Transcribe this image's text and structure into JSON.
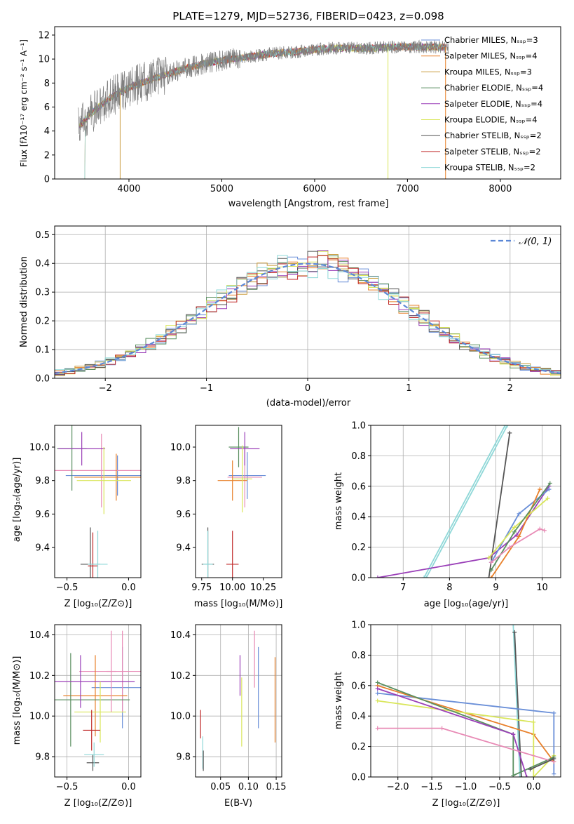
{
  "colors": [
    "#6a8fd8",
    "#e8802a",
    "#c89a3a",
    "#5a8f60",
    "#9a3fb8",
    "#d9e65a",
    "#555555",
    "#c02a2a",
    "#8fd8d8",
    "#e88ab5"
  ],
  "chart_data": [
    {
      "id": "spectrum",
      "type": "line",
      "title": "PLATE=1279, MJD=52736, FIBERID=0423, z=0.098",
      "xlabel": "wavelength [Angstrom, rest frame]",
      "ylabel": "Flux [fλ10⁻¹⁷ erg cm⁻² s⁻¹ A⁻¹]",
      "xlim": [
        3200,
        8650
      ],
      "ylim": [
        0,
        12.7
      ],
      "xticks": [
        "4000",
        "5000",
        "6000",
        "7000",
        "8000"
      ],
      "yticks": [
        "0",
        "2",
        "4",
        "6",
        "8",
        "10",
        "12"
      ],
      "legend_position": "right",
      "legend": [
        "Chabrier MILES, Nₛₛₚ=3",
        "Salpeter MILES, Nₛₛₚ=4",
        "Kroupa MILES, Nₛₛₚ=3",
        "Chabrier ELODIE, Nₛₛₚ=4",
        "Salpeter ELODIE, Nₛₛₚ=4",
        "Kroupa ELODIE, Nₛₛₚ=4",
        "Chabrier STELIB, Nₛₛₚ=2",
        "Salpeter STELIB, Nₛₛₚ=2",
        "Kroupa STELIB, Nₛₛₚ=2"
      ],
      "data_curve": {
        "x": [
          3450,
          3600,
          3800,
          4000,
          4200,
          4400,
          4600,
          4800,
          5000,
          5200,
          5400,
          5600,
          5800,
          6000,
          6200,
          6400,
          6600,
          6800,
          7000,
          7200,
          7400
        ],
        "y": [
          4.3,
          5.5,
          6.8,
          7.6,
          8.2,
          8.7,
          9.2,
          9.6,
          9.9,
          10.1,
          10.3,
          10.5,
          10.6,
          10.8,
          10.9,
          10.9,
          10.9,
          11.0,
          11.0,
          11.0,
          11.0
        ]
      }
    },
    {
      "id": "residuals",
      "type": "histogram",
      "xlabel": "(data-model)/error",
      "ylabel": "Normed distribution",
      "xlim": [
        -2.5,
        2.5
      ],
      "ylim": [
        0,
        0.53
      ],
      "xticks": [
        "−2",
        "−1",
        "0",
        "1",
        "2"
      ],
      "yticks": [
        "0.0",
        "0.1",
        "0.2",
        "0.3",
        "0.4",
        "0.5"
      ],
      "legend": [
        "𝒩(0, 1)"
      ],
      "legend_position": "top-right",
      "grid": true
    },
    {
      "id": "age-vs-Z",
      "type": "errorbar",
      "xlabel": "Z [log₁₀(Z/Z⊙)]",
      "ylabel": "age  [log₁₀(age/yr)]",
      "xlim": [
        -0.6,
        0.1
      ],
      "ylim": [
        9.22,
        10.13
      ],
      "xticks": [
        "−0.5",
        "0.0"
      ],
      "yticks": [
        "9.4",
        "9.6",
        "9.8",
        "10.0"
      ],
      "points": [
        {
          "x": -0.09,
          "y": 9.83,
          "xerr": 0.42,
          "yerr": 0.12
        },
        {
          "x": -0.22,
          "y": 9.86,
          "xerr": 0.42,
          "yerr": 0.22
        },
        {
          "x": -0.1,
          "y": 9.82,
          "xerr": 0.34,
          "yerr": 0.14
        },
        {
          "x": -0.46,
          "y": 9.99,
          "xerr": 0.12,
          "yerr": 0.25
        },
        {
          "x": -0.38,
          "y": 9.99,
          "xerr": 0.19,
          "yerr": 0.1
        },
        {
          "x": -0.2,
          "y": 9.8,
          "xerr": 0.22,
          "yerr": 0.2
        },
        {
          "x": -0.31,
          "y": 9.3,
          "xerr": 0.08,
          "yerr": 0.22
        },
        {
          "x": -0.29,
          "y": 9.29,
          "xerr": 0.04,
          "yerr": 0.2
        },
        {
          "x": -0.25,
          "y": 9.3,
          "xerr": 0.08,
          "yerr": 0.2
        }
      ]
    },
    {
      "id": "age-vs-mass",
      "type": "errorbar",
      "xlabel": "mass [log₁₀(M/M⊙)]",
      "xlim": [
        9.7,
        10.4
      ],
      "ylim": [
        9.22,
        10.13
      ],
      "xticks": [
        "9.75",
        "10.00",
        "10.25"
      ],
      "yticks": [
        "9.4",
        "9.6",
        "9.8",
        "10.0"
      ],
      "points": [
        {
          "x": 10.12,
          "y": 9.83,
          "xerr": 0.15,
          "yerr": 0.14
        },
        {
          "x": 10.1,
          "y": 9.82,
          "xerr": 0.14,
          "yerr": 0.18
        },
        {
          "x": 10.0,
          "y": 9.8,
          "xerr": 0.12,
          "yerr": 0.12
        },
        {
          "x": 10.05,
          "y": 10.0,
          "xerr": 0.08,
          "yerr": 0.12
        },
        {
          "x": 10.1,
          "y": 9.99,
          "xerr": 0.12,
          "yerr": 0.1
        },
        {
          "x": 10.08,
          "y": 9.81,
          "xerr": 0.08,
          "yerr": 0.2
        },
        {
          "x": 9.8,
          "y": 9.3,
          "xerr": 0.05,
          "yerr": 0.22
        },
        {
          "x": 10.0,
          "y": 9.3,
          "xerr": 0.05,
          "yerr": 0.2
        },
        {
          "x": 9.8,
          "y": 9.3,
          "xerr": 0.04,
          "yerr": 0.2
        }
      ]
    },
    {
      "id": "weight-vs-age",
      "type": "line",
      "xlabel": "age  [log₁₀(age/yr)]",
      "ylabel": "mass weight",
      "xlim": [
        6.3,
        10.4
      ],
      "ylim": [
        0,
        1.0
      ],
      "xticks": [
        "7",
        "8",
        "9",
        "10"
      ],
      "yticks": [
        "0.0",
        "0.2",
        "0.4",
        "0.6",
        "0.8",
        "1.0"
      ],
      "grid": true
    },
    {
      "id": "mass-vs-Z",
      "type": "errorbar",
      "xlabel": "Z [log₁₀(Z/Z⊙)]",
      "ylabel": "mass [log₁₀(M/M⊙)]",
      "xlim": [
        -0.6,
        0.1
      ],
      "ylim": [
        9.7,
        10.45
      ],
      "xticks": [
        "−0.5",
        "0.0"
      ],
      "yticks": [
        "9.8",
        "10.0",
        "10.2",
        "10.4"
      ],
      "grid": true
    },
    {
      "id": "mass-vs-ebv",
      "type": "errorbar",
      "xlabel": "E(B-V)",
      "xlim": [
        0.005,
        0.16
      ],
      "ylim": [
        9.7,
        10.45
      ],
      "xticks": [
        "0.05",
        "0.10",
        "0.15"
      ],
      "yticks": [
        "9.8",
        "10.0",
        "10.2",
        "10.4"
      ],
      "grid": true
    },
    {
      "id": "weight-vs-Z",
      "type": "line",
      "xlabel": "Z [log₁₀(Z/Z⊙)]",
      "ylabel": "mass weight",
      "xlim": [
        -2.4,
        0.4
      ],
      "ylim": [
        0,
        1.0
      ],
      "xticks": [
        "−2.0",
        "−1.5",
        "−1.0",
        "−0.5",
        "0.0"
      ],
      "yticks": [
        "0.0",
        "0.2",
        "0.4",
        "0.6",
        "0.8",
        "1.0"
      ],
      "grid": true
    }
  ]
}
